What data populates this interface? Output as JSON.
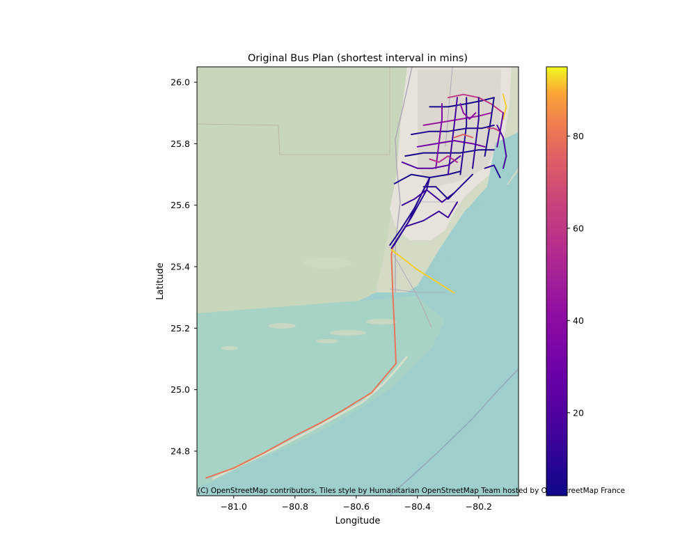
{
  "chart_data": {
    "type": "map",
    "title": "Original Bus Plan (shortest interval in mins)",
    "xlabel": "Longitude",
    "ylabel": "Latitude",
    "xlim": [
      -81.12,
      -80.07
    ],
    "ylim": [
      24.655,
      26.05
    ],
    "x_ticks": [
      -81.0,
      -80.8,
      -80.6,
      -80.4,
      -80.2
    ],
    "x_tick_labels": [
      "−81.0",
      "−80.8",
      "−80.6",
      "−80.4",
      "−80.2"
    ],
    "y_ticks": [
      24.8,
      25.0,
      25.2,
      25.4,
      25.6,
      25.8,
      26.0
    ],
    "y_tick_labels": [
      "24.8",
      "25.0",
      "25.2",
      "25.4",
      "25.6",
      "25.8",
      "26.0"
    ],
    "colorbar": {
      "colormap": "plasma",
      "range": [
        2,
        95
      ],
      "ticks": [
        20,
        40,
        60,
        80
      ],
      "tick_labels": [
        "20",
        "40",
        "60",
        "80"
      ]
    },
    "attribution": "(C) OpenStreetMap contributors, Tiles style by Humanitarian OpenStreetMap Team hosted by OpenStreetMap France",
    "routes": [
      {
        "interval": 80,
        "points": [
          [
            -81.09,
            24.713
          ],
          [
            -81.0,
            24.745
          ],
          [
            -80.9,
            24.795
          ],
          [
            -80.8,
            24.85
          ],
          [
            -80.72,
            24.89
          ],
          [
            -80.64,
            24.935
          ],
          [
            -80.6,
            24.96
          ],
          [
            -80.55,
            24.99
          ],
          [
            -80.5,
            25.05
          ],
          [
            -80.47,
            25.085
          ],
          [
            -80.475,
            25.2
          ],
          [
            -80.48,
            25.3
          ],
          [
            -80.485,
            25.44
          ],
          [
            -80.48,
            25.465
          ]
        ]
      },
      {
        "interval": 92,
        "points": [
          [
            -80.485,
            25.455
          ],
          [
            -80.4,
            25.39
          ],
          [
            -80.28,
            25.315
          ]
        ]
      },
      {
        "interval": 8,
        "points": [
          [
            -80.48,
            25.465
          ],
          [
            -80.42,
            25.56
          ],
          [
            -80.37,
            25.65
          ],
          [
            -80.36,
            25.69
          ]
        ]
      },
      {
        "interval": 10,
        "points": [
          [
            -80.485,
            25.46
          ],
          [
            -80.43,
            25.545
          ],
          [
            -80.39,
            25.63
          ],
          [
            -80.36,
            25.69
          ]
        ]
      },
      {
        "interval": 6,
        "points": [
          [
            -80.49,
            25.47
          ],
          [
            -80.455,
            25.52
          ],
          [
            -80.41,
            25.59
          ],
          [
            -80.37,
            25.67
          ]
        ]
      },
      {
        "interval": 12,
        "points": [
          [
            -80.44,
            25.53
          ],
          [
            -80.38,
            25.55
          ],
          [
            -80.33,
            25.58
          ],
          [
            -80.3,
            25.56
          ],
          [
            -80.27,
            25.61
          ]
        ]
      },
      {
        "interval": 14,
        "points": [
          [
            -80.45,
            25.6
          ],
          [
            -80.41,
            25.62
          ],
          [
            -80.37,
            25.65
          ],
          [
            -80.32,
            25.61
          ],
          [
            -80.28,
            25.64
          ]
        ]
      },
      {
        "interval": 5,
        "points": [
          [
            -80.475,
            25.67
          ],
          [
            -80.42,
            25.7
          ],
          [
            -80.36,
            25.69
          ],
          [
            -80.3,
            25.7
          ],
          [
            -80.26,
            25.71
          ]
        ]
      },
      {
        "interval": 20,
        "points": [
          [
            -80.45,
            25.74
          ],
          [
            -80.4,
            25.72
          ],
          [
            -80.35,
            25.72
          ],
          [
            -80.3,
            25.73
          ],
          [
            -80.26,
            25.76
          ]
        ]
      },
      {
        "interval": 4,
        "points": [
          [
            -80.44,
            25.76
          ],
          [
            -80.38,
            25.77
          ],
          [
            -80.32,
            25.77
          ],
          [
            -80.26,
            25.77
          ],
          [
            -80.2,
            25.78
          ],
          [
            -80.15,
            25.78
          ]
        ]
      },
      {
        "interval": 30,
        "points": [
          [
            -80.4,
            25.79
          ],
          [
            -80.34,
            25.8
          ],
          [
            -80.28,
            25.81
          ],
          [
            -80.22,
            25.8
          ],
          [
            -80.18,
            25.79
          ]
        ]
      },
      {
        "interval": 6,
        "points": [
          [
            -80.42,
            25.83
          ],
          [
            -80.36,
            25.84
          ],
          [
            -80.3,
            25.84
          ],
          [
            -80.24,
            25.85
          ],
          [
            -80.19,
            25.85
          ],
          [
            -80.15,
            25.86
          ]
        ]
      },
      {
        "interval": 45,
        "points": [
          [
            -80.38,
            25.86
          ],
          [
            -80.32,
            25.87
          ],
          [
            -80.26,
            25.88
          ],
          [
            -80.2,
            25.89
          ],
          [
            -80.16,
            25.9
          ]
        ]
      },
      {
        "interval": 3,
        "points": [
          [
            -80.36,
            25.92
          ],
          [
            -80.3,
            25.92
          ],
          [
            -80.24,
            25.93
          ],
          [
            -80.19,
            25.94
          ],
          [
            -80.15,
            25.95
          ]
        ]
      },
      {
        "interval": 60,
        "points": [
          [
            -80.3,
            25.95
          ],
          [
            -80.25,
            25.96
          ],
          [
            -80.2,
            25.95
          ],
          [
            -80.16,
            25.93
          ],
          [
            -80.12,
            25.9
          ]
        ]
      },
      {
        "interval": 92,
        "points": [
          [
            -80.12,
            25.96
          ],
          [
            -80.11,
            25.92
          ],
          [
            -80.12,
            25.88
          ]
        ]
      },
      {
        "interval": 10,
        "points": [
          [
            -80.22,
            25.72
          ],
          [
            -80.21,
            25.8
          ],
          [
            -80.2,
            25.88
          ],
          [
            -80.2,
            25.95
          ]
        ]
      },
      {
        "interval": 8,
        "points": [
          [
            -80.26,
            25.7
          ],
          [
            -80.25,
            25.78
          ],
          [
            -80.24,
            25.86
          ],
          [
            -80.24,
            25.95
          ]
        ]
      },
      {
        "interval": 15,
        "points": [
          [
            -80.3,
            25.7
          ],
          [
            -80.29,
            25.78
          ],
          [
            -80.28,
            25.86
          ],
          [
            -80.27,
            25.95
          ]
        ]
      },
      {
        "interval": 35,
        "points": [
          [
            -80.34,
            25.72
          ],
          [
            -80.33,
            25.8
          ],
          [
            -80.32,
            25.88
          ],
          [
            -80.32,
            25.93
          ]
        ]
      },
      {
        "interval": 5,
        "points": [
          [
            -80.18,
            25.76
          ],
          [
            -80.17,
            25.82
          ],
          [
            -80.16,
            25.88
          ],
          [
            -80.15,
            25.95
          ]
        ]
      },
      {
        "interval": 25,
        "points": [
          [
            -80.14,
            25.79
          ],
          [
            -80.13,
            25.84
          ],
          [
            -80.12,
            25.9
          ]
        ]
      },
      {
        "interval": 7,
        "points": [
          [
            -80.38,
            25.66
          ],
          [
            -80.34,
            25.66
          ],
          [
            -80.3,
            25.62
          ],
          [
            -80.26,
            25.66
          ],
          [
            -80.22,
            25.7
          ]
        ]
      },
      {
        "interval": 55,
        "points": [
          [
            -80.36,
            25.75
          ],
          [
            -80.33,
            25.74
          ],
          [
            -80.3,
            25.76
          ],
          [
            -80.27,
            25.74
          ]
        ]
      },
      {
        "interval": 75,
        "points": [
          [
            -80.28,
            25.82
          ],
          [
            -80.25,
            25.83
          ],
          [
            -80.22,
            25.82
          ]
        ]
      },
      {
        "interval": 65,
        "points": [
          [
            -80.17,
            25.85
          ],
          [
            -80.15,
            25.85
          ],
          [
            -80.13,
            25.84
          ]
        ]
      },
      {
        "interval": 40,
        "points": [
          [
            -80.26,
            25.93
          ],
          [
            -80.25,
            25.9
          ],
          [
            -80.23,
            25.88
          ],
          [
            -80.21,
            25.9
          ]
        ]
      },
      {
        "interval": 18,
        "points": [
          [
            -80.12,
            25.72
          ],
          [
            -80.11,
            25.76
          ],
          [
            -80.12,
            25.82
          ],
          [
            -80.14,
            25.86
          ]
        ]
      },
      {
        "interval": 9,
        "points": [
          [
            -80.18,
            25.72
          ],
          [
            -80.15,
            25.73
          ],
          [
            -80.13,
            25.69
          ]
        ]
      }
    ]
  }
}
